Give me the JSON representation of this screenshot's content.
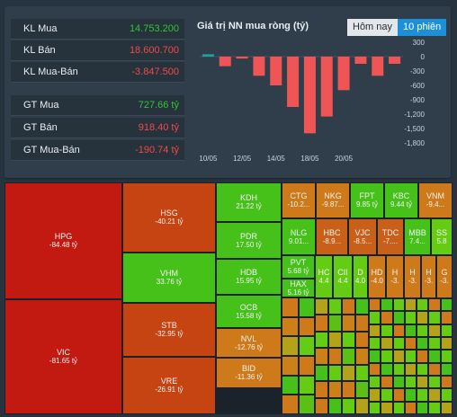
{
  "stats": [
    {
      "label": "KL Mua",
      "value": "14.753.200",
      "color": "green"
    },
    {
      "label": "KL Bán",
      "value": "18.600.700",
      "color": "red"
    },
    {
      "label": "KL Mua-Bán",
      "value": "-3.847.500",
      "color": "red"
    },
    {
      "label": "GT Mua",
      "value": "727.66 tỷ",
      "color": "green"
    },
    {
      "label": "GT Bán",
      "value": "918.40 tỷ",
      "color": "red"
    },
    {
      "label": "GT Mua-Bán",
      "value": "-190.74 tỷ",
      "color": "red"
    }
  ],
  "chart_title": "Giá trị NN mua ròng (tỷ)",
  "buttons": {
    "today": "Hôm nay",
    "ten_sessions": "10 phiên"
  },
  "chart_data": {
    "type": "bar",
    "y_ticks": [
      "300",
      "0",
      "-300",
      "-600",
      "-900",
      "-1,200",
      "-1,500",
      "-1,800"
    ],
    "ylim": [
      -1800,
      300
    ],
    "x_labels": [
      "10/05",
      "12/05",
      "14/05",
      "18/05",
      "20/05"
    ],
    "values": [
      50,
      -200,
      -40,
      -400,
      -600,
      -1050,
      -1600,
      -1250,
      -700,
      -150,
      -400,
      -150
    ],
    "colors": {
      "positive": "#1aa39a",
      "negative": "#ef5555"
    }
  },
  "treemap": [
    {
      "sym": "HPG",
      "val": "-84.48 tỷ"
    },
    {
      "sym": "VIC",
      "val": "-81.65 tỷ"
    },
    {
      "sym": "HSG",
      "val": "-40.21 tỷ"
    },
    {
      "sym": "VHM",
      "val": "33.76 tỷ"
    },
    {
      "sym": "STB",
      "val": "-32.95 tỷ"
    },
    {
      "sym": "VRE",
      "val": "-26.91 tỷ"
    },
    {
      "sym": "KDH",
      "val": "21.22 tỷ"
    },
    {
      "sym": "PDR",
      "val": "17.50 tỷ"
    },
    {
      "sym": "HDB",
      "val": "15.95 tỷ"
    },
    {
      "sym": "OCB",
      "val": "15.58 tỷ"
    },
    {
      "sym": "NVL",
      "val": "-12.76 tỷ"
    },
    {
      "sym": "BID",
      "val": "-11.36 tỷ"
    },
    {
      "sym": "CTG",
      "val": "-10.2..."
    },
    {
      "sym": "NKG",
      "val": "-9.87..."
    },
    {
      "sym": "FPT",
      "val": "9.85 tỷ"
    },
    {
      "sym": "KBC",
      "val": "9.44 tỷ"
    },
    {
      "sym": "VNM",
      "val": "-9.4..."
    },
    {
      "sym": "NLG",
      "val": "9.01..."
    },
    {
      "sym": "HBC",
      "val": "-8.9..."
    },
    {
      "sym": "VJC",
      "val": "-8.5..."
    },
    {
      "sym": "TDC",
      "val": "-7...."
    },
    {
      "sym": "MBB",
      "val": "7.4..."
    },
    {
      "sym": "SS",
      "val": "5.8"
    },
    {
      "sym": "PVT",
      "val": "5.68 tỷ"
    },
    {
      "sym": "HC",
      "val": "4.4"
    },
    {
      "sym": "CII",
      "val": "4.4"
    },
    {
      "sym": "D",
      "val": "4.0"
    },
    {
      "sym": "HD",
      "val": "-4.0"
    },
    {
      "sym": "H",
      "val": "-3."
    },
    {
      "sym": "H",
      "val": "-3."
    },
    {
      "sym": "H",
      "val": "-3."
    },
    {
      "sym": "G",
      "val": "-3."
    },
    {
      "sym": "HAX",
      "val": "5.16 tỷ"
    }
  ]
}
